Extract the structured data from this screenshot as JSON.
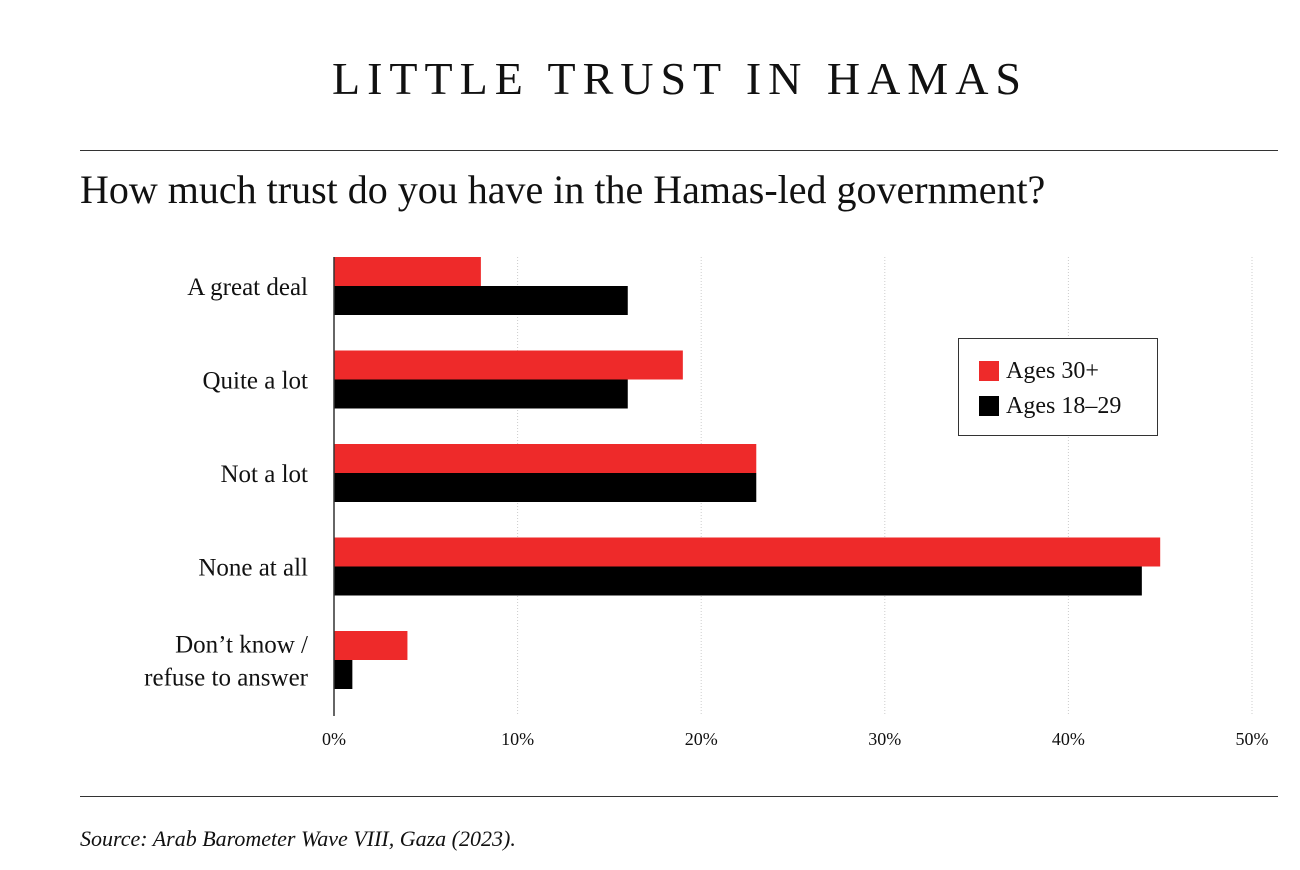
{
  "title": "LITTLE TRUST IN HAMAS",
  "subtitle": "How much trust do you have in the Hamas-led government?",
  "source": "Source: Arab Barometer Wave VIII, Gaza (2023).",
  "colors": {
    "ages_30_plus": "#ee2a2a",
    "ages_18_29": "#000000",
    "grid": "#cccccc",
    "axis": "#333333"
  },
  "chart_data": {
    "type": "bar",
    "orientation": "horizontal",
    "categories": [
      [
        "A great deal"
      ],
      [
        "Quite a lot"
      ],
      [
        "Not a lot"
      ],
      [
        "None at all"
      ],
      [
        "Don’t know /",
        "refuse to answer"
      ]
    ],
    "series": [
      {
        "name": "Ages 30+",
        "color": "#ee2a2a",
        "values": [
          8,
          19,
          23,
          45,
          4
        ]
      },
      {
        "name": "Ages 18–29",
        "color": "#000000",
        "values": [
          16,
          16,
          23,
          44,
          1
        ]
      }
    ],
    "xlim": [
      0,
      50
    ],
    "xticks": [
      0,
      10,
      20,
      30,
      40,
      50
    ],
    "xtick_labels": [
      "0%",
      "10%",
      "20%",
      "30%",
      "40%",
      "50%"
    ],
    "grid": "vertical dotted",
    "legend_position": "right"
  }
}
